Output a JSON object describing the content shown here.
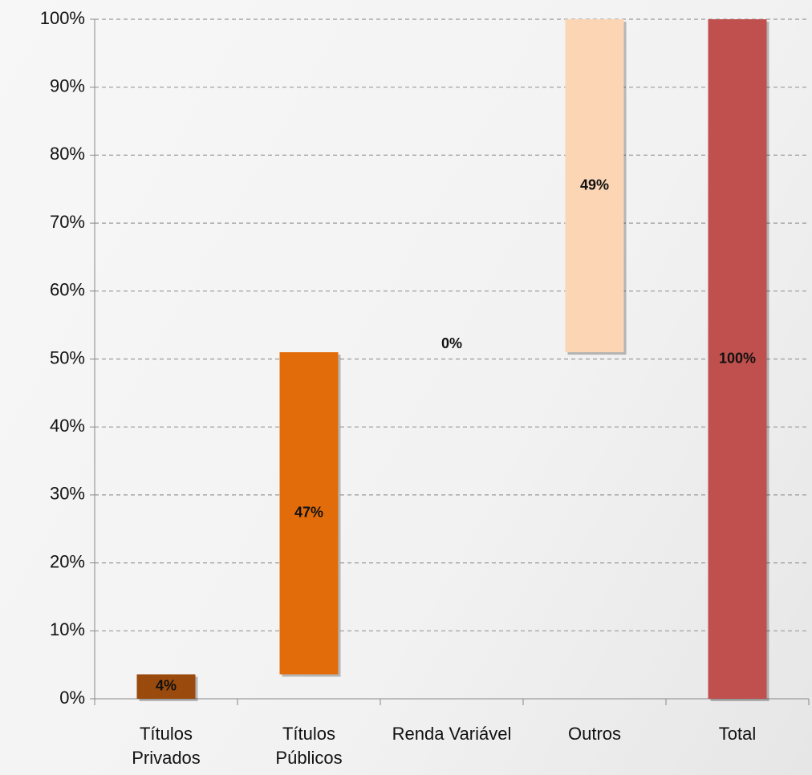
{
  "chart_data": {
    "type": "waterfall",
    "categories": [
      "Títulos Privados",
      "Títulos Públicos",
      "Renda Variável",
      "Outros",
      "Total"
    ],
    "values": [
      3.6,
      47.4,
      0,
      49,
      100
    ],
    "value_labels": [
      "4%",
      "47%",
      "0%",
      "49%",
      "100%"
    ],
    "is_total": [
      false,
      false,
      false,
      false,
      true
    ],
    "colors": [
      "#9a4a0c",
      "#e36c0a",
      "#e36c0a",
      "#fcd5b5",
      "#c0504d"
    ],
    "ylim": [
      0,
      100
    ],
    "yticks": [
      {
        "value": 0,
        "label": "0%"
      },
      {
        "value": 10,
        "label": "10%"
      },
      {
        "value": 20,
        "label": "20%"
      },
      {
        "value": 30,
        "label": "30%"
      },
      {
        "value": 40,
        "label": "40%"
      },
      {
        "value": 50,
        "label": "50%"
      },
      {
        "value": 60,
        "label": "60%"
      },
      {
        "value": 70,
        "label": "70%"
      },
      {
        "value": 80,
        "label": "80%"
      },
      {
        "value": 90,
        "label": "90%"
      },
      {
        "value": 100,
        "label": "100%"
      }
    ],
    "grid": true
  }
}
